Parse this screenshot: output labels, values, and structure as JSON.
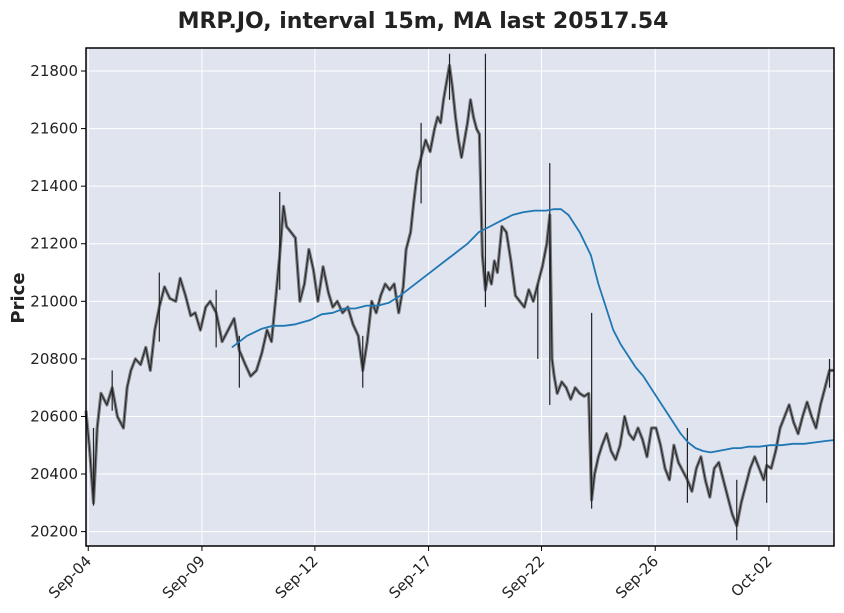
{
  "chart_data": {
    "type": "line",
    "title": "MRP.JO, interval 15m, MA last 20517.54",
    "ylabel": "Price",
    "xlabel": "",
    "ylim": [
      20150,
      21880
    ],
    "xlim": [
      0,
      100
    ],
    "grid": true,
    "y_ticks": [
      20200,
      20400,
      20600,
      20800,
      21000,
      21200,
      21400,
      21600,
      21800
    ],
    "y_tick_labels": [
      "20200",
      "20400",
      "20600",
      "20800",
      "21000",
      "21200",
      "21400",
      "21600",
      "21800"
    ],
    "x_ticks": [
      {
        "label": "Sep-04",
        "x": 0.3
      },
      {
        "label": "Sep-09",
        "x": 15.5
      },
      {
        "label": "Sep-12",
        "x": 30.6
      },
      {
        "label": "Sep-17",
        "x": 45.8
      },
      {
        "label": "Sep-22",
        "x": 60.9
      },
      {
        "label": "Sep-26",
        "x": 76.1
      },
      {
        "label": "Oct-02",
        "x": 91.3
      }
    ],
    "series": [
      {
        "kind": "price",
        "color": "#222222",
        "points": [
          [
            0.0,
            20620
          ],
          [
            0.5,
            20480
          ],
          [
            1.0,
            20300
          ],
          [
            1.5,
            20560
          ],
          [
            2.0,
            20680
          ],
          [
            2.8,
            20640
          ],
          [
            3.5,
            20700
          ],
          [
            4.2,
            20600
          ],
          [
            5.0,
            20560
          ],
          [
            5.5,
            20700
          ],
          [
            6.0,
            20760
          ],
          [
            6.6,
            20800
          ],
          [
            7.3,
            20780
          ],
          [
            8.0,
            20840
          ],
          [
            8.6,
            20760
          ],
          [
            9.2,
            20900
          ],
          [
            9.8,
            20980
          ],
          [
            10.5,
            21050
          ],
          [
            11.2,
            21010
          ],
          [
            12.0,
            21000
          ],
          [
            12.6,
            21080
          ],
          [
            13.3,
            21020
          ],
          [
            14.0,
            20950
          ],
          [
            14.6,
            20960
          ],
          [
            15.3,
            20900
          ],
          [
            16.0,
            20980
          ],
          [
            16.6,
            21000
          ],
          [
            17.4,
            20960
          ],
          [
            18.2,
            20860
          ],
          [
            19.0,
            20900
          ],
          [
            19.8,
            20940
          ],
          [
            20.5,
            20830
          ],
          [
            21.3,
            20780
          ],
          [
            22.0,
            20740
          ],
          [
            22.8,
            20760
          ],
          [
            23.5,
            20820
          ],
          [
            24.2,
            20900
          ],
          [
            24.8,
            20860
          ],
          [
            25.4,
            21020
          ],
          [
            25.9,
            21160
          ],
          [
            26.4,
            21330
          ],
          [
            26.8,
            21260
          ],
          [
            27.4,
            21240
          ],
          [
            28.0,
            21220
          ],
          [
            28.6,
            21000
          ],
          [
            29.2,
            21060
          ],
          [
            29.8,
            21180
          ],
          [
            30.4,
            21110
          ],
          [
            31.0,
            21000
          ],
          [
            31.7,
            21120
          ],
          [
            32.4,
            21030
          ],
          [
            33.0,
            20980
          ],
          [
            33.6,
            21000
          ],
          [
            34.3,
            20960
          ],
          [
            35.0,
            20980
          ],
          [
            35.7,
            20920
          ],
          [
            36.4,
            20880
          ],
          [
            37.0,
            20760
          ],
          [
            37.6,
            20860
          ],
          [
            38.2,
            21000
          ],
          [
            38.8,
            20960
          ],
          [
            39.4,
            21020
          ],
          [
            40.0,
            21060
          ],
          [
            40.6,
            21040
          ],
          [
            41.2,
            21060
          ],
          [
            41.8,
            20960
          ],
          [
            42.4,
            21050
          ],
          [
            42.8,
            21180
          ],
          [
            43.4,
            21240
          ],
          [
            43.8,
            21340
          ],
          [
            44.3,
            21450
          ],
          [
            44.8,
            21500
          ],
          [
            45.4,
            21560
          ],
          [
            46.0,
            21520
          ],
          [
            46.6,
            21600
          ],
          [
            47.0,
            21640
          ],
          [
            47.4,
            21620
          ],
          [
            47.8,
            21700
          ],
          [
            48.2,
            21760
          ],
          [
            48.6,
            21820
          ],
          [
            49.0,
            21740
          ],
          [
            49.4,
            21640
          ],
          [
            49.8,
            21560
          ],
          [
            50.2,
            21500
          ],
          [
            50.6,
            21560
          ],
          [
            51.0,
            21620
          ],
          [
            51.4,
            21700
          ],
          [
            51.8,
            21640
          ],
          [
            52.2,
            21600
          ],
          [
            52.6,
            21580
          ],
          [
            53.0,
            21160
          ],
          [
            53.4,
            21040
          ],
          [
            53.8,
            21100
          ],
          [
            54.2,
            21060
          ],
          [
            54.6,
            21140
          ],
          [
            55.0,
            21100
          ],
          [
            55.6,
            21260
          ],
          [
            56.2,
            21240
          ],
          [
            56.8,
            21140
          ],
          [
            57.4,
            21020
          ],
          [
            58.0,
            21000
          ],
          [
            58.6,
            20980
          ],
          [
            59.2,
            21040
          ],
          [
            59.8,
            21000
          ],
          [
            60.4,
            21060
          ],
          [
            61.0,
            21120
          ],
          [
            61.6,
            21200
          ],
          [
            62.0,
            21300
          ],
          [
            62.3,
            20800
          ],
          [
            62.6,
            20740
          ],
          [
            63.0,
            20680
          ],
          [
            63.6,
            20720
          ],
          [
            64.2,
            20700
          ],
          [
            64.8,
            20660
          ],
          [
            65.4,
            20700
          ],
          [
            66.0,
            20680
          ],
          [
            66.6,
            20670
          ],
          [
            67.2,
            20680
          ],
          [
            67.6,
            20310
          ],
          [
            68.0,
            20400
          ],
          [
            68.5,
            20460
          ],
          [
            69.0,
            20500
          ],
          [
            69.6,
            20540
          ],
          [
            70.2,
            20480
          ],
          [
            70.8,
            20450
          ],
          [
            71.4,
            20500
          ],
          [
            72.0,
            20600
          ],
          [
            72.6,
            20540
          ],
          [
            73.2,
            20520
          ],
          [
            73.8,
            20560
          ],
          [
            74.4,
            20520
          ],
          [
            75.0,
            20460
          ],
          [
            75.6,
            20560
          ],
          [
            76.2,
            20560
          ],
          [
            76.8,
            20500
          ],
          [
            77.4,
            20420
          ],
          [
            78.0,
            20380
          ],
          [
            78.6,
            20500
          ],
          [
            79.2,
            20440
          ],
          [
            79.8,
            20410
          ],
          [
            80.4,
            20380
          ],
          [
            81.0,
            20340
          ],
          [
            81.6,
            20420
          ],
          [
            82.2,
            20460
          ],
          [
            82.8,
            20380
          ],
          [
            83.4,
            20320
          ],
          [
            84.0,
            20420
          ],
          [
            84.6,
            20440
          ],
          [
            85.2,
            20380
          ],
          [
            85.8,
            20320
          ],
          [
            86.4,
            20260
          ],
          [
            87.0,
            20220
          ],
          [
            87.6,
            20300
          ],
          [
            88.2,
            20360
          ],
          [
            88.8,
            20420
          ],
          [
            89.4,
            20460
          ],
          [
            90.0,
            20420
          ],
          [
            90.6,
            20380
          ],
          [
            91.0,
            20430
          ],
          [
            91.6,
            20420
          ],
          [
            92.2,
            20480
          ],
          [
            92.8,
            20560
          ],
          [
            93.4,
            20600
          ],
          [
            94.0,
            20640
          ],
          [
            94.6,
            20580
          ],
          [
            95.2,
            20540
          ],
          [
            95.8,
            20600
          ],
          [
            96.4,
            20650
          ],
          [
            97.0,
            20600
          ],
          [
            97.6,
            20560
          ],
          [
            98.2,
            20640
          ],
          [
            98.8,
            20700
          ],
          [
            99.4,
            20760
          ],
          [
            100.0,
            20760
          ]
        ],
        "spikes": [
          [
            1.0,
            20290,
            20560
          ],
          [
            3.5,
            20620,
            20760
          ],
          [
            9.8,
            20860,
            21100
          ],
          [
            17.4,
            20840,
            21040
          ],
          [
            20.5,
            20700,
            20880
          ],
          [
            25.9,
            21040,
            21380
          ],
          [
            37.0,
            20700,
            20880
          ],
          [
            44.8,
            21340,
            21620
          ],
          [
            48.6,
            21700,
            21860
          ],
          [
            53.4,
            20980,
            21860
          ],
          [
            60.4,
            20800,
            21060
          ],
          [
            62.0,
            20640,
            21480
          ],
          [
            67.6,
            20280,
            20960
          ],
          [
            80.4,
            20300,
            20560
          ],
          [
            87.0,
            20170,
            20380
          ],
          [
            91.0,
            20300,
            20500
          ],
          [
            99.4,
            20700,
            20800
          ]
        ]
      },
      {
        "kind": "moving_average",
        "color": "#1f77b4",
        "points": [
          [
            19.5,
            20840
          ],
          [
            21.5,
            20880
          ],
          [
            23.5,
            20905
          ],
          [
            25.0,
            20915
          ],
          [
            26.5,
            20915
          ],
          [
            28.0,
            20920
          ],
          [
            30.0,
            20935
          ],
          [
            31.5,
            20955
          ],
          [
            33.0,
            20960
          ],
          [
            34.5,
            20975
          ],
          [
            36.0,
            20975
          ],
          [
            37.5,
            20985
          ],
          [
            39.0,
            20985
          ],
          [
            40.5,
            20995
          ],
          [
            42.0,
            21020
          ],
          [
            43.5,
            21050
          ],
          [
            45.0,
            21080
          ],
          [
            46.5,
            21110
          ],
          [
            48.0,
            21140
          ],
          [
            49.5,
            21170
          ],
          [
            51.0,
            21200
          ],
          [
            52.5,
            21240
          ],
          [
            54.0,
            21260
          ],
          [
            55.5,
            21280
          ],
          [
            57.0,
            21300
          ],
          [
            58.5,
            21310
          ],
          [
            60.0,
            21315
          ],
          [
            61.5,
            21315
          ],
          [
            62.5,
            21320
          ],
          [
            63.5,
            21320
          ],
          [
            64.5,
            21300
          ],
          [
            66.0,
            21240
          ],
          [
            67.5,
            21160
          ],
          [
            68.5,
            21060
          ],
          [
            69.5,
            20980
          ],
          [
            70.5,
            20900
          ],
          [
            71.5,
            20850
          ],
          [
            72.5,
            20810
          ],
          [
            73.5,
            20770
          ],
          [
            74.5,
            20740
          ],
          [
            75.5,
            20700
          ],
          [
            76.5,
            20660
          ],
          [
            77.5,
            20620
          ],
          [
            78.5,
            20580
          ],
          [
            79.5,
            20540
          ],
          [
            80.5,
            20510
          ],
          [
            81.5,
            20490
          ],
          [
            82.5,
            20480
          ],
          [
            83.5,
            20475
          ],
          [
            84.5,
            20480
          ],
          [
            85.5,
            20485
          ],
          [
            86.5,
            20490
          ],
          [
            87.5,
            20490
          ],
          [
            88.5,
            20495
          ],
          [
            90.0,
            20495
          ],
          [
            91.5,
            20500
          ],
          [
            93.0,
            20500
          ],
          [
            94.5,
            20505
          ],
          [
            96.0,
            20505
          ],
          [
            97.5,
            20510
          ],
          [
            99.0,
            20515
          ],
          [
            100.0,
            20518
          ]
        ]
      }
    ]
  },
  "colors": {
    "plot_background": "#dfe4ef",
    "grid": "#ffffff",
    "axes_frame": "#000000",
    "text": "#222222",
    "price_line": "#222222",
    "ma_line": "#1f77b4"
  }
}
